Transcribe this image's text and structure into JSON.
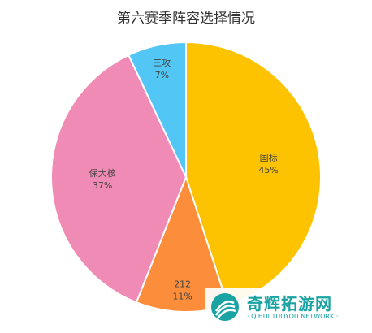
{
  "chart_data": {
    "type": "pie",
    "title": "第六赛季阵容选择情况",
    "slices": [
      {
        "label": "国标",
        "value": 45,
        "value_text": "45%",
        "color": "#FDC300"
      },
      {
        "label": "212",
        "value": 11,
        "value_text": "11%",
        "color": "#FC8E3B"
      },
      {
        "label": "保大核",
        "value": 37,
        "value_text": "37%",
        "color": "#F08BB5"
      },
      {
        "label": "三攻",
        "value": 7,
        "value_text": "7%",
        "color": "#52C6F4"
      }
    ],
    "start": "top",
    "direction": "clockwise"
  },
  "watermark": {
    "main_text": "奇辉拓游网",
    "sub_text": "· QIHUI TUOYOU NETWORK ·",
    "color": "#1aa3a3"
  }
}
